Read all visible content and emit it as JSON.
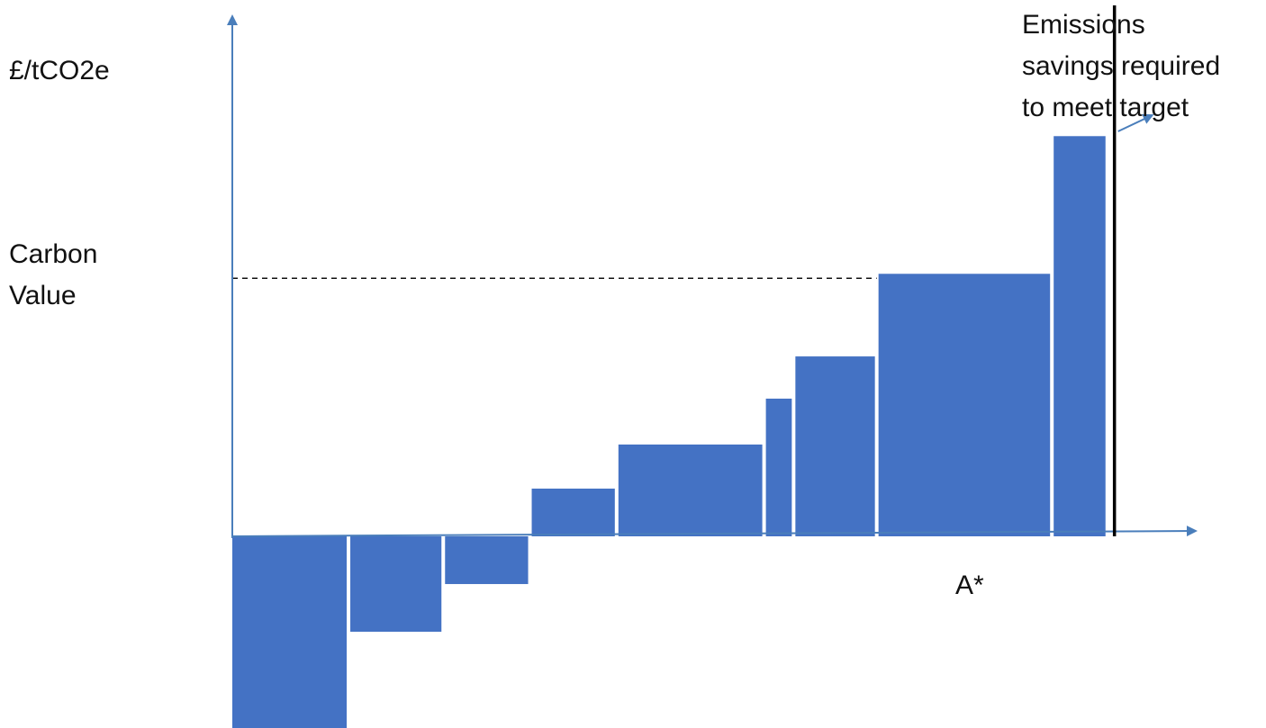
{
  "chart_data": {
    "type": "bar",
    "subtype": "marginal-abatement-cost-curve",
    "ylabel": "£/tCO2e",
    "annotations": {
      "carbon_value": [
        "Carbon",
        "Value"
      ],
      "target_line": [
        "Emissions",
        "savings required",
        "to meet target"
      ],
      "target_marker": "A*"
    },
    "colors": {
      "bar": "#4472c4",
      "axis": "#4a7ebb",
      "target_line": "#000000"
    },
    "bars": [
      {
        "width": 1.3,
        "value": -2.1
      },
      {
        "width": 1.06,
        "value": -1.04
      },
      {
        "width": 0.97,
        "value": -0.52
      },
      {
        "width": 0.97,
        "value": 0.52
      },
      {
        "width": 1.65,
        "value": 1.0
      },
      {
        "width": 0.33,
        "value": 1.5
      },
      {
        "width": 0.93,
        "value": 1.96
      },
      {
        "width": 1.96,
        "value": 2.86
      },
      {
        "width": 0.62,
        "value": 4.36
      }
    ],
    "carbon_value": 2.86,
    "target_x": 9.87,
    "xlim": [
      0,
      10.8
    ],
    "ylim": [
      -2.1,
      5.8
    ],
    "grid": false,
    "legend": "none"
  }
}
